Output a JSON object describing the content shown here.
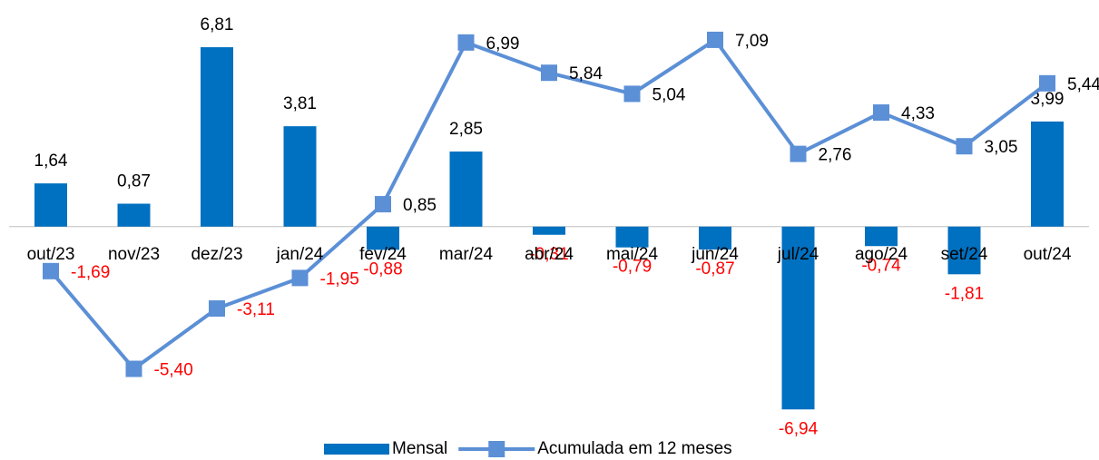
{
  "chart_data": {
    "type": "bar",
    "categories": [
      "out/23",
      "nov/23",
      "dez/23",
      "jan/24",
      "fev/24",
      "mar/24",
      "abr/24",
      "mai/24",
      "jun/24",
      "jul/24",
      "ago/24",
      "set/24",
      "out/24"
    ],
    "series": [
      {
        "name": "Mensal",
        "type": "bar",
        "color": "#0070c0",
        "values": [
          1.64,
          0.87,
          6.81,
          3.81,
          -0.88,
          2.85,
          -0.31,
          -0.79,
          -0.87,
          -6.94,
          -0.74,
          -1.81,
          3.99
        ],
        "value_labels": [
          "1,64",
          "0,87",
          "6,81",
          "3,81",
          "-0,88",
          "2,85",
          "-0,31",
          "-0,79",
          "-0,87",
          "-6,94",
          "-0,74",
          "-1,81",
          "3,99"
        ]
      },
      {
        "name": "Acumulada em 12 meses",
        "type": "line",
        "color": "#5b8fd6",
        "values": [
          -1.69,
          -5.4,
          -3.11,
          -1.95,
          0.85,
          6.99,
          5.84,
          5.04,
          7.09,
          2.76,
          4.33,
          3.05,
          5.44
        ],
        "value_labels": [
          "-1,69",
          "-5,40",
          "-3,11",
          "-1,95",
          "0,85",
          "6,99",
          "5,84",
          "5,04",
          "7,09",
          "2,76",
          "4,33",
          "3,05",
          "5,44"
        ]
      }
    ],
    "ylim": [
      -7.5,
      8
    ],
    "label_color": "#000000",
    "negative_label_color": "#ff0000",
    "legend": "bottom"
  }
}
